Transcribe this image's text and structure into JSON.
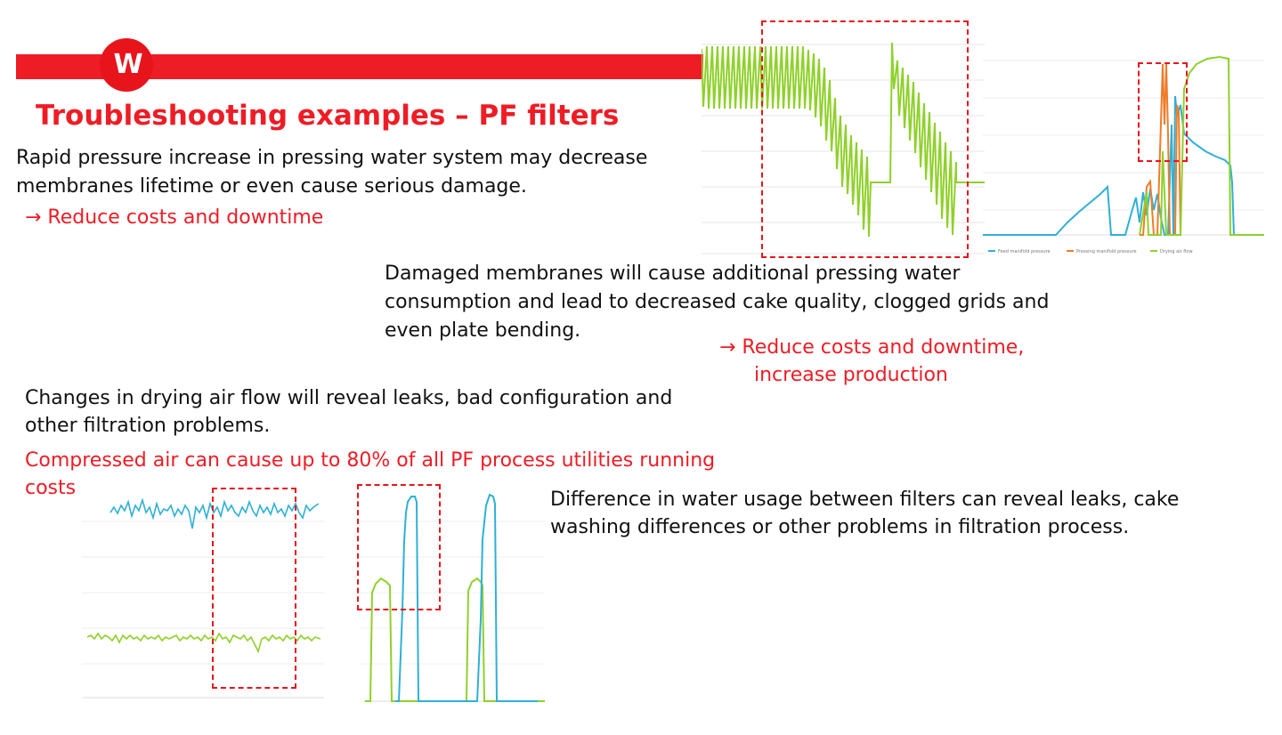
{
  "slide": {
    "logo_text": "W",
    "title": "Troubleshooting examples – PF filters",
    "block1": {
      "line1": "Rapid pressure increase in pressing water system may decrease",
      "line2": "membranes lifetime or even cause serious damage.",
      "arrow": "→ Reduce costs and downtime"
    },
    "block2": {
      "line1": "Damaged membranes will cause additional pressing water",
      "line2": "consumption and lead to decreased cake quality, clogged grids and",
      "line3": "even plate bending.",
      "arrow1": "→ Reduce costs and downtime,",
      "arrow2": "increase production"
    },
    "block3": {
      "line1": "Changes in drying air flow will reveal leaks, bad configuration and",
      "line2": "other filtration problems.",
      "red1": "Compressed air can cause up to 80% of all PF process utilities running",
      "red2": "costs"
    },
    "block4": {
      "line1": "Difference in water usage between filters can reveal leaks, cake",
      "line2": "washing differences or other problems in filtration process."
    },
    "legend_small": [
      "Feed manifold pressure",
      "Pressing manifold pressure",
      "Drying air flow"
    ]
  },
  "colors": {
    "brand_red": "#ee1c25",
    "green_line": "#8fd12a",
    "cyan_line": "#2fb0d6",
    "orange_line": "#f07c28"
  }
}
